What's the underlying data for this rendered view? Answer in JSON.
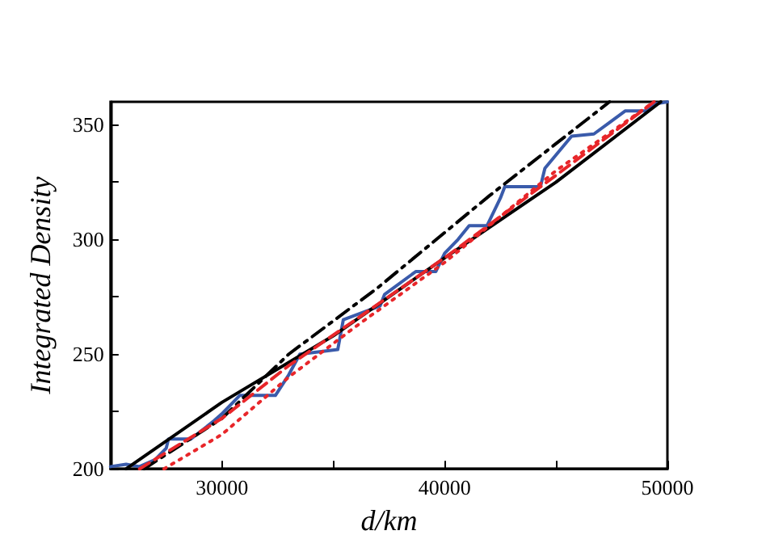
{
  "chart_data": {
    "type": "line",
    "xlabel": "d/km",
    "ylabel": "Integrated Density",
    "xlim": [
      25000,
      50000
    ],
    "ylim": [
      200,
      360
    ],
    "xticks": [
      30000,
      {
        "value": 35000,
        "label": null
      },
      40000,
      {
        "value": 45000,
        "label": null
      },
      50000
    ],
    "yticks": [
      200,
      {
        "value": 225,
        "label": null
      },
      250,
      {
        "value": 275,
        "label": null
      },
      300,
      {
        "value": 325,
        "label": null
      },
      350
    ],
    "marker": "none",
    "series": [
      {
        "color": "#3a5bab",
        "line_style": "solid",
        "x": [
          25000,
          25700,
          26300,
          27000,
          27500,
          27600,
          28600,
          29000,
          29650,
          30000,
          30800,
          32400,
          33000,
          33500,
          35200,
          35450,
          37100,
          37300,
          38700,
          39600,
          40000,
          40600,
          41100,
          41900,
          42500,
          42700,
          44300,
          44500,
          45700,
          46700,
          47400,
          48100,
          49000,
          49400,
          50000
        ],
        "values": [
          201,
          202,
          201,
          204,
          209,
          213,
          213,
          216,
          221,
          224,
          232,
          232,
          241,
          250,
          252,
          265,
          271,
          276,
          286,
          286,
          294,
          300,
          306,
          306,
          318,
          323,
          323,
          331,
          345,
          346,
          351,
          356,
          356,
          359,
          360
        ]
      },
      {
        "color": "#000000",
        "line_style": "solid",
        "x": [
          25700,
          30000,
          35000,
          40000,
          45000,
          49700
        ],
        "values": [
          200,
          229,
          258,
          292,
          325,
          360
        ]
      },
      {
        "color": "#000000",
        "line_style": "dashdot",
        "x": [
          26500,
          30000,
          33000,
          37000,
          42000,
          47400
        ],
        "values": [
          200,
          222,
          250,
          279,
          319,
          360
        ]
      },
      {
        "color": "#e8262a",
        "line_style": "dotted",
        "x": [
          27400,
          30000,
          33000,
          36000,
          40000,
          45000,
          49400
        ],
        "values": [
          200,
          215,
          240,
          262,
          290,
          330,
          360
        ]
      },
      {
        "color": "#e8262a",
        "line_style": "dashed",
        "x": [
          26300,
          30000,
          33000,
          36000,
          40000,
          45000,
          49400
        ],
        "values": [
          200,
          222,
          245,
          265,
          292,
          328,
          360
        ]
      }
    ]
  }
}
